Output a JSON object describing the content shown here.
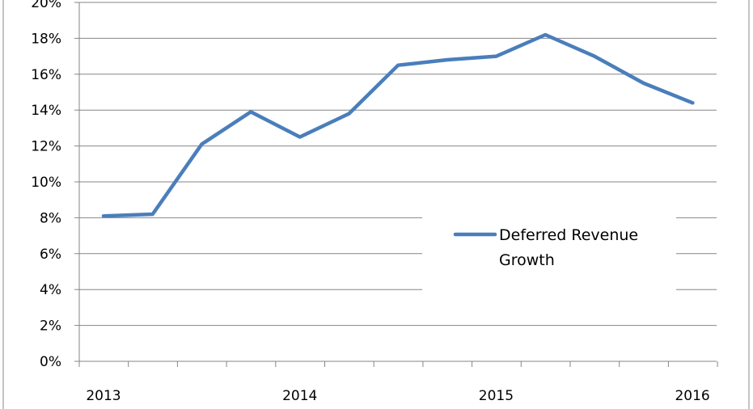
{
  "chart_data": {
    "type": "line",
    "title": "",
    "xlabel": "",
    "ylabel": "",
    "x_tick_labels": [
      "2013",
      "2014",
      "2015",
      "2016"
    ],
    "y_tick_labels": [
      "0%",
      "2%",
      "4%",
      "6%",
      "8%",
      "10%",
      "12%",
      "14%",
      "16%",
      "18%",
      "20%"
    ],
    "ylim": [
      0,
      20
    ],
    "y_unit": "%",
    "grid": true,
    "legend_placement": "right",
    "series": [
      {
        "name": "Deferred Revenue Growth",
        "color": "#4a7ebb",
        "values": [
          8.1,
          8.2,
          12.1,
          13.9,
          12.5,
          13.8,
          16.5,
          16.8,
          17.0,
          18.2,
          17.0,
          15.5,
          14.4
        ]
      }
    ]
  }
}
